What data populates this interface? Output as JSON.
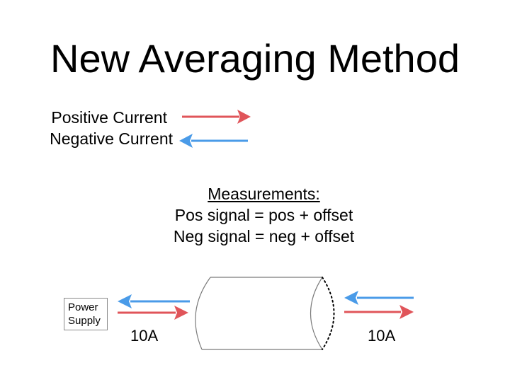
{
  "title": "New Averaging Method",
  "legend": {
    "positive_label": "Positive Current",
    "negative_label": "Negative Current",
    "positive_color": "#e0555a",
    "negative_color": "#4a9be8"
  },
  "measurements": {
    "heading": "Measurements:",
    "pos_line": "Pos signal = pos + offset",
    "neg_line": "Neg signal = neg + offset"
  },
  "power_supply": {
    "line1": "Power",
    "line2": "Supply"
  },
  "current_left": "10A",
  "current_right": "10A"
}
